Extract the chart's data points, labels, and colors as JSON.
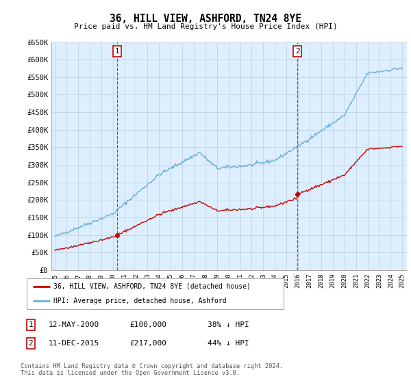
{
  "title": "36, HILL VIEW, ASHFORD, TN24 8YE",
  "subtitle": "Price paid vs. HM Land Registry's House Price Index (HPI)",
  "ylim": [
    0,
    650000
  ],
  "yticks": [
    0,
    50000,
    100000,
    150000,
    200000,
    250000,
    300000,
    350000,
    400000,
    450000,
    500000,
    550000,
    600000,
    650000
  ],
  "ytick_labels": [
    "£0",
    "£50K",
    "£100K",
    "£150K",
    "£200K",
    "£250K",
    "£300K",
    "£350K",
    "£400K",
    "£450K",
    "£500K",
    "£550K",
    "£600K",
    "£650K"
  ],
  "sale1_date": 2000.36,
  "sale1_price": 100000,
  "sale1_label": "1",
  "sale2_date": 2015.94,
  "sale2_price": 217000,
  "sale2_label": "2",
  "hpi_color": "#6baed6",
  "price_color": "#cc0000",
  "dashed_color": "#cc0000",
  "plot_bg_color": "#ddeeff",
  "legend_label1": "36, HILL VIEW, ASHFORD, TN24 8YE (detached house)",
  "legend_label2": "HPI: Average price, detached house, Ashford",
  "ann1_date": "12-MAY-2000",
  "ann1_price": "£100,000",
  "ann1_hpi": "38% ↓ HPI",
  "ann2_date": "11-DEC-2015",
  "ann2_price": "£217,000",
  "ann2_hpi": "44% ↓ HPI",
  "footnote": "Contains HM Land Registry data © Crown copyright and database right 2024.\nThis data is licensed under the Open Government Licence v3.0.",
  "bg_color": "#ffffff",
  "grid_color": "#bbccdd"
}
